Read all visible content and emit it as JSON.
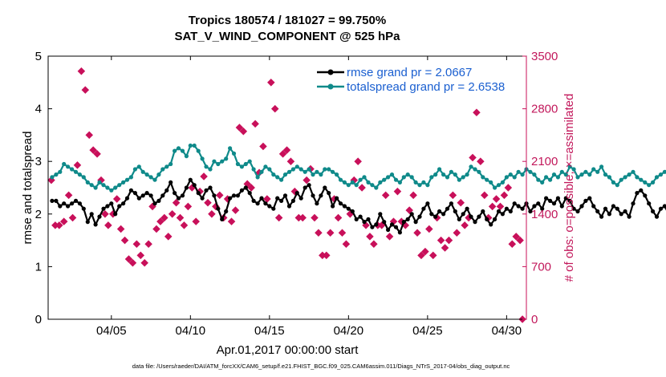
{
  "chart_data": {
    "type": "line",
    "title": "Tropics 180574 / 181027 = 99.750%",
    "subtitle": "SAT_V_WIND_COMPONENT @ 525 hPa",
    "xlabel": "Apr.01,2017 00:00:00 start",
    "ylabel": "rmse and totalspread",
    "ylabel_right": "# of obs: o=possible; ×=assimilated",
    "footnote": "data file: /Users/raeder/DAI/ATM_forcXX/CAM6_setup/f.e21.FHIST_BGC.f09_025.CAM6assim.011/Diags_NTrS_2017-04/obs_diag_output.nc",
    "x_range_days": [
      1,
      31.25
    ],
    "ylim": [
      0,
      5
    ],
    "ylim_right": [
      0,
      3500
    ],
    "x_tick_labels": [
      "04/05",
      "04/10",
      "04/15",
      "04/20",
      "04/25",
      "04/30"
    ],
    "x_tick_days": [
      5,
      10,
      15,
      20,
      25,
      30
    ],
    "y_ticks": [
      "0",
      "1",
      "2",
      "3",
      "4",
      "5"
    ],
    "y_ticks_right": [
      "0",
      "700",
      "1400",
      "2100",
      "2800",
      "3500"
    ],
    "x_step_days": 0.25,
    "x_start_day": 1.25,
    "series": [
      {
        "name": "rmse grand pr = 2.0667",
        "color": "#000000",
        "marker": "circle",
        "values": [
          2.25,
          2.25,
          2.15,
          2.2,
          2.15,
          2.2,
          2.25,
          2.2,
          2.1,
          1.85,
          2.0,
          1.8,
          1.95,
          2.1,
          2.15,
          2.2,
          2.0,
          2.15,
          2.2,
          2.3,
          2.45,
          2.4,
          2.3,
          2.35,
          2.4,
          2.35,
          2.2,
          2.25,
          2.35,
          2.45,
          2.6,
          2.4,
          2.3,
          2.35,
          2.5,
          2.65,
          2.55,
          2.4,
          2.3,
          2.45,
          2.5,
          2.35,
          2.1,
          1.9,
          2.05,
          2.3,
          2.35,
          2.35,
          2.45,
          2.5,
          2.4,
          2.25,
          2.2,
          2.3,
          2.2,
          2.15,
          2.1,
          2.3,
          2.25,
          2.35,
          2.15,
          2.25,
          2.4,
          2.3,
          2.5,
          2.55,
          2.35,
          2.2,
          2.35,
          2.5,
          2.4,
          2.15,
          2.3,
          2.2,
          2.15,
          2.1,
          2.05,
          1.9,
          1.95,
          1.85,
          1.9,
          1.75,
          1.8,
          2.0,
          1.85,
          1.7,
          1.8,
          1.75,
          1.65,
          1.85,
          1.9,
          2.0,
          1.85,
          1.95,
          2.1,
          2.2,
          2.0,
          1.95,
          2.05,
          2.0,
          2.1,
          2.2,
          2.05,
          1.9,
          2.0,
          2.1,
          1.95,
          1.85,
          1.95,
          2.05,
          1.9,
          1.8,
          1.9,
          2.05,
          2.0,
          2.1,
          2.05,
          2.2,
          2.15,
          2.1,
          2.2,
          2.05,
          2.15,
          2.2,
          2.1,
          2.3,
          2.25,
          2.2,
          2.3,
          2.15,
          2.3,
          2.25,
          2.1,
          2.05,
          2.15,
          2.25,
          2.3,
          2.15,
          2.05,
          1.95,
          2.1,
          2.0,
          2.15,
          2.1,
          2.0,
          2.05,
          1.95,
          2.2,
          2.4,
          2.45,
          2.35,
          2.2,
          2.05,
          1.95,
          2.1,
          2.15,
          2.0,
          2.1,
          1.95,
          2.05,
          2.0,
          2.1,
          2.15,
          1.95,
          1.85,
          1.9,
          1.8,
          1.95,
          1.85,
          1.9,
          1.85,
          2.0,
          1.85,
          2.05,
          2.1,
          2.0,
          1.85,
          1.8,
          1.75,
          1.85,
          1.9,
          2.0,
          1.9,
          1.8,
          1.75,
          1.7,
          1.8,
          1.85,
          2.0,
          2.05,
          2.0,
          2.0
        ]
      },
      {
        "name": "totalspread grand pr = 2.6538",
        "color": "#0f8a8a",
        "marker": "circle",
        "values": [
          2.7,
          2.75,
          2.8,
          2.95,
          2.9,
          2.85,
          2.8,
          2.75,
          2.7,
          2.6,
          2.55,
          2.5,
          2.6,
          2.55,
          2.5,
          2.45,
          2.5,
          2.55,
          2.6,
          2.65,
          2.7,
          2.85,
          2.9,
          2.8,
          2.75,
          2.7,
          2.65,
          2.75,
          2.85,
          2.9,
          2.95,
          3.2,
          3.25,
          3.2,
          3.1,
          3.3,
          3.3,
          3.2,
          3.05,
          2.9,
          2.85,
          3.0,
          2.95,
          3.0,
          3.05,
          3.25,
          3.15,
          2.95,
          2.9,
          2.95,
          3.0,
          2.85,
          2.7,
          2.8,
          2.9,
          2.85,
          2.75,
          2.7,
          2.65,
          2.75,
          2.8,
          2.85,
          2.9,
          2.85,
          2.8,
          2.85,
          2.75,
          2.8,
          2.75,
          2.85,
          2.85,
          2.8,
          2.75,
          2.65,
          2.6,
          2.55,
          2.6,
          2.55,
          2.65,
          2.7,
          2.6,
          2.55,
          2.5,
          2.6,
          2.65,
          2.7,
          2.75,
          2.65,
          2.6,
          2.7,
          2.75,
          2.7,
          2.6,
          2.55,
          2.6,
          2.55,
          2.7,
          2.75,
          2.85,
          2.75,
          2.7,
          2.8,
          2.75,
          2.65,
          2.7,
          2.75,
          2.9,
          2.85,
          2.8,
          2.7,
          2.65,
          2.6,
          2.5,
          2.55,
          2.6,
          2.7,
          2.75,
          2.7,
          2.8,
          2.75,
          2.85,
          2.8,
          2.75,
          2.65,
          2.6,
          2.7,
          2.65,
          2.75,
          2.7,
          2.8,
          2.75,
          2.9,
          2.85,
          2.7,
          2.75,
          2.8,
          2.75,
          2.85,
          2.8,
          2.9,
          2.75,
          2.7,
          2.6,
          2.55,
          2.65,
          2.7,
          2.75,
          2.8,
          2.7,
          2.65,
          2.6,
          2.55,
          2.6,
          2.7,
          2.75,
          2.8,
          2.85,
          2.75,
          2.7,
          2.65,
          2.6,
          2.7,
          2.75,
          2.7,
          2.65,
          2.6,
          2.55,
          2.65,
          2.6,
          2.55,
          2.5,
          2.6,
          2.55,
          2.65,
          2.6,
          2.55,
          2.5,
          2.6,
          2.65,
          2.55,
          2.5,
          2.6,
          2.65,
          2.7,
          2.65,
          2.6,
          2.55,
          2.65,
          2.7,
          2.8
        ]
      }
    ],
    "obs_possible_color": "#c8105a",
    "obs_assimilated_color": "#c8105a",
    "obs_count_points": [
      [
        1.2,
        1850
      ],
      [
        1.45,
        1250
      ],
      [
        1.7,
        1250
      ],
      [
        2.0,
        1300
      ],
      [
        2.3,
        1650
      ],
      [
        2.55,
        1350
      ],
      [
        2.85,
        2050
      ],
      [
        3.1,
        3300
      ],
      [
        3.35,
        3050
      ],
      [
        3.6,
        2450
      ],
      [
        3.85,
        2250
      ],
      [
        4.1,
        2200
      ],
      [
        4.35,
        1850
      ],
      [
        4.6,
        1400
      ],
      [
        4.8,
        1250
      ],
      [
        5.1,
        1400
      ],
      [
        5.35,
        1600
      ],
      [
        5.6,
        1200
      ],
      [
        5.85,
        1050
      ],
      [
        6.1,
        800
      ],
      [
        6.35,
        750
      ],
      [
        6.6,
        1000
      ],
      [
        6.85,
        850
      ],
      [
        7.1,
        750
      ],
      [
        7.35,
        1000
      ],
      [
        7.6,
        1500
      ],
      [
        7.85,
        1200
      ],
      [
        8.1,
        1300
      ],
      [
        8.35,
        1350
      ],
      [
        8.6,
        1100
      ],
      [
        8.85,
        1400
      ],
      [
        9.1,
        1550
      ],
      [
        9.35,
        1350
      ],
      [
        9.6,
        1250
      ],
      [
        9.85,
        1500
      ],
      [
        10.1,
        1750
      ],
      [
        10.35,
        1300
      ],
      [
        10.6,
        1700
      ],
      [
        10.85,
        1900
      ],
      [
        11.1,
        1550
      ],
      [
        11.35,
        1400
      ],
      [
        11.6,
        1500
      ],
      [
        11.85,
        1650
      ],
      [
        12.1,
        1350
      ],
      [
        12.35,
        1600
      ],
      [
        12.6,
        1300
      ],
      [
        12.85,
        1450
      ],
      [
        13.1,
        2550
      ],
      [
        13.35,
        2500
      ],
      [
        13.6,
        1800
      ],
      [
        13.85,
        1750
      ],
      [
        14.1,
        2600
      ],
      [
        14.35,
        1950
      ],
      [
        14.6,
        2300
      ],
      [
        14.85,
        1600
      ],
      [
        15.1,
        3150
      ],
      [
        15.35,
        2800
      ],
      [
        15.6,
        1350
      ],
      [
        15.85,
        2200
      ],
      [
        16.1,
        2250
      ],
      [
        16.35,
        2100
      ],
      [
        16.6,
        1700
      ],
      [
        16.85,
        1350
      ],
      [
        17.1,
        1350
      ],
      [
        17.35,
        1850
      ],
      [
        17.6,
        2000
      ],
      [
        17.85,
        1350
      ],
      [
        18.1,
        1150
      ],
      [
        18.35,
        850
      ],
      [
        18.6,
        850
      ],
      [
        18.85,
        1150
      ],
      [
        19.1,
        1600
      ],
      [
        19.35,
        1350
      ],
      [
        19.6,
        1150
      ],
      [
        19.85,
        1000
      ],
      [
        20.1,
        1400
      ],
      [
        20.35,
        1850
      ],
      [
        20.6,
        2100
      ],
      [
        20.85,
        1750
      ],
      [
        21.1,
        1250
      ],
      [
        21.35,
        1100
      ],
      [
        21.6,
        1000
      ],
      [
        21.85,
        1250
      ],
      [
        22.1,
        1250
      ],
      [
        22.35,
        1650
      ],
      [
        22.6,
        1100
      ],
      [
        22.85,
        1300
      ],
      [
        23.1,
        1700
      ],
      [
        23.35,
        1300
      ],
      [
        23.6,
        1250
      ],
      [
        23.85,
        1450
      ],
      [
        24.1,
        1650
      ],
      [
        24.35,
        1150
      ],
      [
        24.6,
        850
      ],
      [
        24.85,
        900
      ],
      [
        25.1,
        1200
      ],
      [
        25.35,
        850
      ],
      [
        25.6,
        1350
      ],
      [
        25.85,
        1050
      ],
      [
        26.1,
        950
      ],
      [
        26.35,
        1050
      ],
      [
        26.6,
        1650
      ],
      [
        26.85,
        1150
      ],
      [
        27.1,
        1550
      ],
      [
        27.35,
        1250
      ],
      [
        27.6,
        1350
      ],
      [
        27.85,
        2150
      ],
      [
        28.1,
        2750
      ],
      [
        28.35,
        2100
      ],
      [
        28.6,
        1650
      ],
      [
        28.85,
        1350
      ],
      [
        29.1,
        1500
      ],
      [
        29.35,
        1600
      ],
      [
        29.6,
        1500
      ],
      [
        29.85,
        1650
      ],
      [
        30.1,
        1750
      ],
      [
        30.35,
        1000
      ],
      [
        30.6,
        1100
      ],
      [
        30.85,
        1050
      ],
      [
        31.0,
        0
      ]
    ],
    "legend_location": "top-right"
  }
}
